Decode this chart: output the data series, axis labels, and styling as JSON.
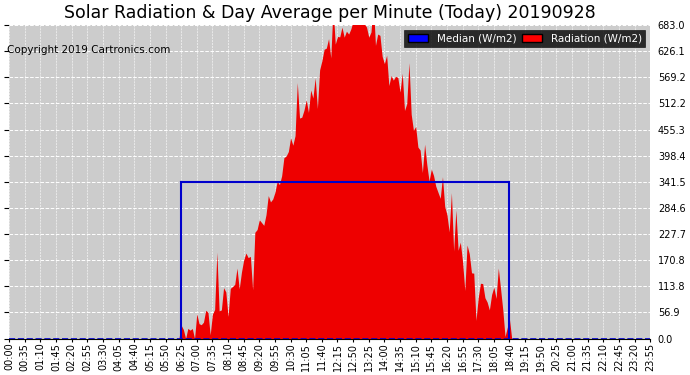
{
  "title": "Solar Radiation & Day Average per Minute (Today) 20190928",
  "copyright": "Copyright 2019 Cartronics.com",
  "ymax": 683.0,
  "ymin": 0.0,
  "yticks": [
    0.0,
    56.9,
    113.8,
    170.8,
    227.7,
    284.6,
    341.5,
    398.4,
    455.3,
    512.2,
    569.2,
    626.1,
    683.0
  ],
  "legend_median_label": "Median (W/m2)",
  "legend_radiation_label": "Radiation (W/m2)",
  "median_color": "#0000cc",
  "radiation_color": "#ee0000",
  "background_color": "#ffffff",
  "plot_bg_color": "#cccccc",
  "title_fontsize": 12.5,
  "copyright_fontsize": 7.5,
  "tick_fontsize": 7.0,
  "sunrise_tick": 77,
  "sunset_tick": 224,
  "peak_tick": 155,
  "peak_value": 683.0,
  "median_value": 341.5,
  "n_points": 288
}
